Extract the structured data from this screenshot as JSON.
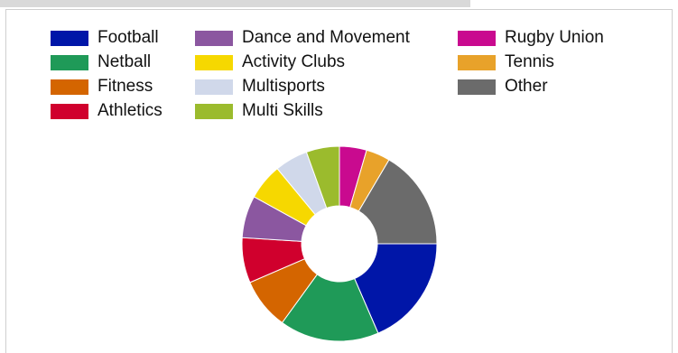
{
  "chart_data": {
    "type": "pie",
    "donut": true,
    "title": "",
    "legend_position": "top",
    "categories": [
      "Football",
      "Netball",
      "Fitness",
      "Athletics",
      "Dance and Movement",
      "Activity Clubs",
      "Multisports",
      "Multi Skills",
      "Rugby Union",
      "Tennis",
      "Other"
    ],
    "values": [
      18.5,
      16.5,
      8.5,
      7.5,
      7.0,
      6.0,
      5.5,
      5.5,
      4.5,
      4.0,
      16.5
    ],
    "colors": [
      "#0016a8",
      "#1f9a58",
      "#d46500",
      "#d0002d",
      "#8b57a0",
      "#f6d800",
      "#d0d8ea",
      "#9bbb2d",
      "#c90a8f",
      "#e8a22a",
      "#6b6b6b"
    ]
  }
}
